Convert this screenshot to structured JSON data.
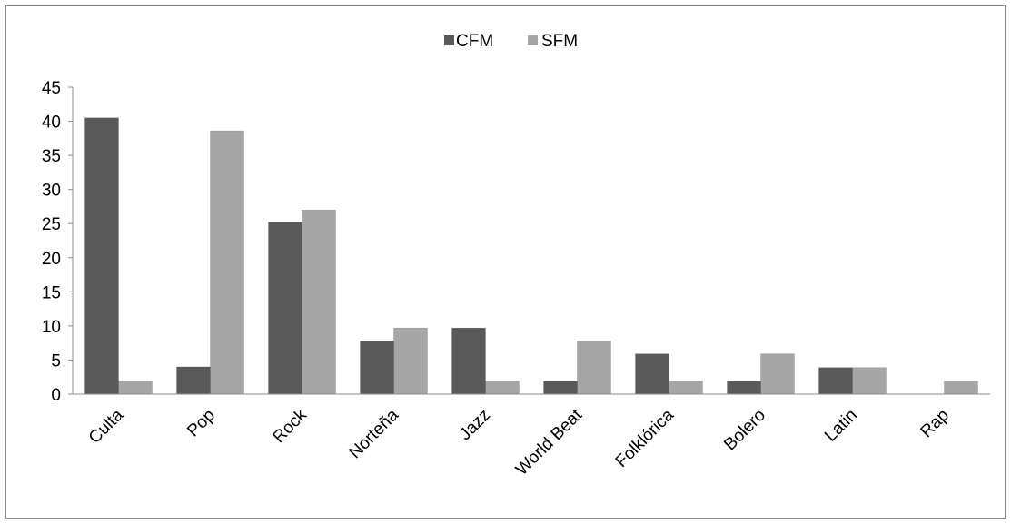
{
  "chart_data": {
    "type": "bar",
    "title": "",
    "xlabel": "",
    "ylabel": "",
    "ylim": [
      0,
      45
    ],
    "yticks": [
      0,
      5,
      10,
      15,
      20,
      25,
      30,
      35,
      40,
      45
    ],
    "grid": false,
    "legend_position": "top-center",
    "categories": [
      "Culta",
      "Pop",
      "Rock",
      "Norteña",
      "Jazz",
      "World Beat",
      "Folklórica",
      "Bolero",
      "Latin",
      "Rap"
    ],
    "series": [
      {
        "name": "CFM",
        "color": "#595959",
        "values": [
          40.5,
          4,
          25.2,
          7.8,
          9.7,
          1.9,
          5.9,
          1.9,
          3.9,
          0
        ]
      },
      {
        "name": "SFM",
        "color": "#a6a6a6",
        "values": [
          1.9,
          38.6,
          27,
          9.7,
          1.9,
          7.8,
          1.9,
          5.9,
          3.9,
          1.9
        ]
      }
    ]
  }
}
